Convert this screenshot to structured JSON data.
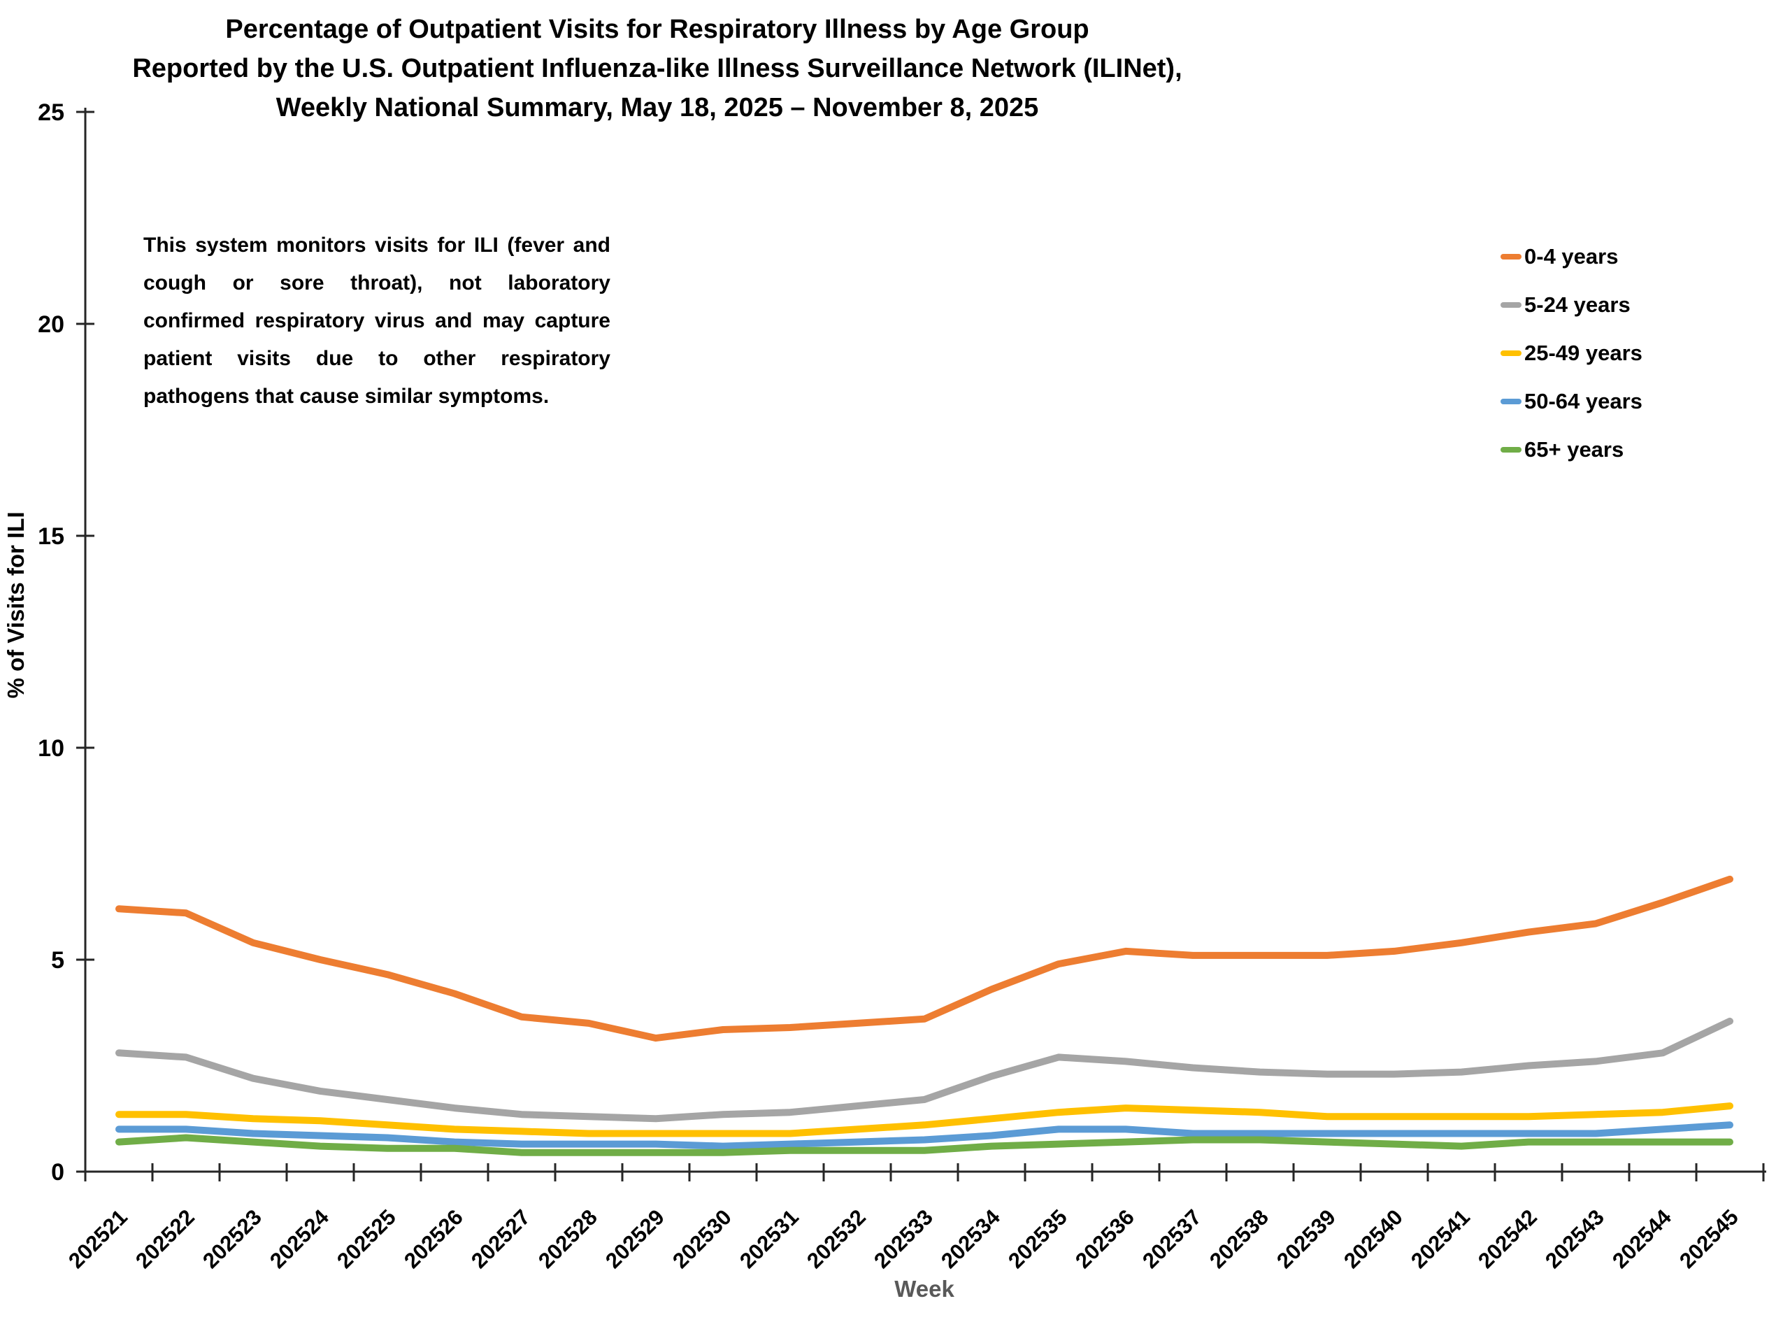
{
  "title": {
    "line1": "Percentage of Outpatient Visits for Respiratory Illness by Age Group",
    "line2": "Reported by the U.S. Outpatient Influenza-like Illness Surveillance Network (ILINet),",
    "line3": "Weekly National Summary, May 18, 2025 –  November 8, 2025"
  },
  "annotation": "This system monitors visits for ILI (fever and cough or sore throat), not laboratory confirmed respiratory virus and may capture patient visits due to other respiratory pathogens that cause similar symptoms.",
  "axes": {
    "y_label": "% of Visits for ILI",
    "x_label": "Week",
    "axis_color": "#262626",
    "x_label_color": "#595959"
  },
  "chart_data": {
    "type": "line",
    "title": "Percentage of Outpatient Visits for Respiratory Illness by Age Group, ILINet Weekly National Summary, May 18, 2025 – November 8, 2025",
    "xlabel": "Week",
    "ylabel": "% of Visits for ILI",
    "ylim": [
      0,
      25
    ],
    "y_ticks": [
      0,
      5,
      10,
      15,
      20,
      25
    ],
    "grid": false,
    "legend_position": "right",
    "categories": [
      "202521",
      "202522",
      "202523",
      "202524",
      "202525",
      "202526",
      "202527",
      "202528",
      "202529",
      "202530",
      "202531",
      "202532",
      "202533",
      "202534",
      "202535",
      "202536",
      "202537",
      "202538",
      "202539",
      "202540",
      "202541",
      "202542",
      "202543",
      "202544",
      "202545"
    ],
    "series": [
      {
        "name": "0-4 years",
        "color": "#ED7D31",
        "values": [
          6.2,
          6.1,
          5.4,
          5.0,
          4.65,
          4.2,
          3.65,
          3.5,
          3.15,
          3.35,
          3.4,
          3.5,
          3.6,
          4.3,
          4.9,
          5.2,
          5.1,
          5.1,
          5.1,
          5.2,
          5.4,
          5.65,
          5.85,
          6.35,
          6.9
        ]
      },
      {
        "name": "5-24 years",
        "color": "#A5A5A5",
        "values": [
          2.8,
          2.7,
          2.2,
          1.9,
          1.7,
          1.5,
          1.35,
          1.3,
          1.25,
          1.35,
          1.4,
          1.55,
          1.7,
          2.25,
          2.7,
          2.6,
          2.45,
          2.35,
          2.3,
          2.3,
          2.35,
          2.5,
          2.6,
          2.8,
          3.55
        ]
      },
      {
        "name": "25-49 years",
        "color": "#FFC000",
        "values": [
          1.35,
          1.35,
          1.25,
          1.2,
          1.1,
          1.0,
          0.95,
          0.9,
          0.9,
          0.9,
          0.9,
          1.0,
          1.1,
          1.25,
          1.4,
          1.5,
          1.45,
          1.4,
          1.3,
          1.3,
          1.3,
          1.3,
          1.35,
          1.4,
          1.55
        ]
      },
      {
        "name": "50-64 years",
        "color": "#5B9BD5",
        "values": [
          1.0,
          1.0,
          0.9,
          0.85,
          0.8,
          0.7,
          0.65,
          0.65,
          0.65,
          0.6,
          0.65,
          0.7,
          0.75,
          0.85,
          1.0,
          1.0,
          0.9,
          0.9,
          0.9,
          0.9,
          0.9,
          0.9,
          0.9,
          1.0,
          1.1
        ]
      },
      {
        "name": "65+ years",
        "color": "#70AD47",
        "values": [
          0.7,
          0.8,
          0.7,
          0.6,
          0.55,
          0.55,
          0.45,
          0.45,
          0.45,
          0.45,
          0.5,
          0.5,
          0.5,
          0.6,
          0.65,
          0.7,
          0.75,
          0.75,
          0.7,
          0.65,
          0.6,
          0.7,
          0.7,
          0.7,
          0.7
        ]
      }
    ]
  }
}
